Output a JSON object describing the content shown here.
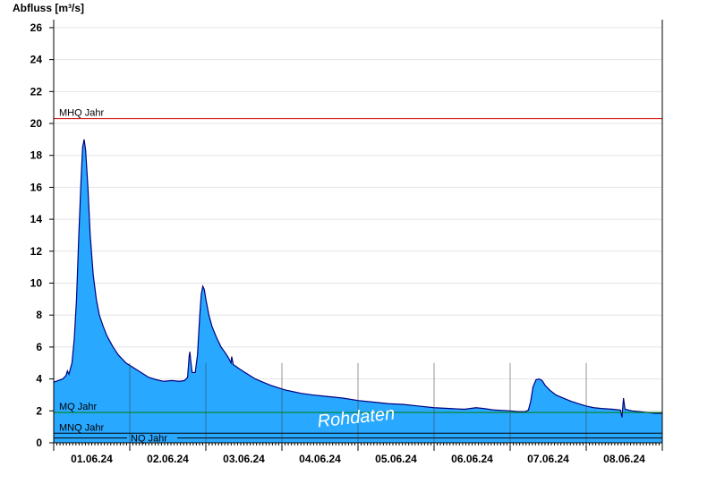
{
  "chart_data": {
    "type": "area",
    "title": "",
    "ylabel": "Abfluss [m³/s]",
    "xlabel": "",
    "ylim": [
      0,
      26.5
    ],
    "x_range_days": [
      0,
      8
    ],
    "yticks": [
      0,
      2,
      4,
      6,
      8,
      10,
      12,
      14,
      16,
      18,
      20,
      22,
      24,
      26
    ],
    "xticks": [
      {
        "label": "01.06.24",
        "day": 0.5
      },
      {
        "label": "02.06.24",
        "day": 1.5
      },
      {
        "label": "03.06.24",
        "day": 2.5
      },
      {
        "label": "04.06.24",
        "day": 3.5
      },
      {
        "label": "05.06.24",
        "day": 4.5
      },
      {
        "label": "06.06.24",
        "day": 5.5
      },
      {
        "label": "07.06.24",
        "day": 6.5
      },
      {
        "label": "08.06.24",
        "day": 7.5
      }
    ],
    "grid": true,
    "reference_lines": [
      {
        "label": "MHQ Jahr",
        "value": 20.3,
        "color": "#d00000"
      },
      {
        "label": "MQ Jahr",
        "value": 1.9,
        "color": "#008000"
      },
      {
        "label": "MNQ Jahr",
        "value": 0.6,
        "color": "#000000"
      },
      {
        "label": "NQ Jahr",
        "value": 0.3,
        "color": "#000000"
      }
    ],
    "watermark": "Rohdaten",
    "series": [
      {
        "fill_color": "#29a8ff",
        "line_color": "#000080",
        "points": [
          [
            0.0,
            3.8
          ],
          [
            0.06,
            3.9
          ],
          [
            0.12,
            4.0
          ],
          [
            0.16,
            4.2
          ],
          [
            0.18,
            4.5
          ],
          [
            0.2,
            4.3
          ],
          [
            0.24,
            5.0
          ],
          [
            0.27,
            6.5
          ],
          [
            0.3,
            9.0
          ],
          [
            0.33,
            13.0
          ],
          [
            0.36,
            16.5
          ],
          [
            0.38,
            18.5
          ],
          [
            0.4,
            19.0
          ],
          [
            0.42,
            18.3
          ],
          [
            0.45,
            16.0
          ],
          [
            0.48,
            13.0
          ],
          [
            0.52,
            10.5
          ],
          [
            0.56,
            9.0
          ],
          [
            0.6,
            8.0
          ],
          [
            0.65,
            7.3
          ],
          [
            0.7,
            6.7
          ],
          [
            0.78,
            6.0
          ],
          [
            0.85,
            5.5
          ],
          [
            0.95,
            5.0
          ],
          [
            1.05,
            4.7
          ],
          [
            1.15,
            4.4
          ],
          [
            1.25,
            4.1
          ],
          [
            1.35,
            3.95
          ],
          [
            1.45,
            3.85
          ],
          [
            1.55,
            3.9
          ],
          [
            1.65,
            3.85
          ],
          [
            1.72,
            3.9
          ],
          [
            1.76,
            4.1
          ],
          [
            1.78,
            5.4
          ],
          [
            1.79,
            5.7
          ],
          [
            1.8,
            5.2
          ],
          [
            1.82,
            4.4
          ],
          [
            1.86,
            4.4
          ],
          [
            1.89,
            5.5
          ],
          [
            1.92,
            8.0
          ],
          [
            1.94,
            9.3
          ],
          [
            1.96,
            9.8
          ],
          [
            1.98,
            9.6
          ],
          [
            2.0,
            9.0
          ],
          [
            2.04,
            8.0
          ],
          [
            2.08,
            7.3
          ],
          [
            2.14,
            6.6
          ],
          [
            2.2,
            6.0
          ],
          [
            2.26,
            5.6
          ],
          [
            2.3,
            5.3
          ],
          [
            2.33,
            5.0
          ],
          [
            2.34,
            5.4
          ],
          [
            2.36,
            4.9
          ],
          [
            2.45,
            4.6
          ],
          [
            2.55,
            4.3
          ],
          [
            2.65,
            4.0
          ],
          [
            2.75,
            3.8
          ],
          [
            2.85,
            3.6
          ],
          [
            2.95,
            3.45
          ],
          [
            3.05,
            3.3
          ],
          [
            3.15,
            3.2
          ],
          [
            3.25,
            3.1
          ],
          [
            3.4,
            3.0
          ],
          [
            3.6,
            2.9
          ],
          [
            3.8,
            2.8
          ],
          [
            4.0,
            2.65
          ],
          [
            4.2,
            2.55
          ],
          [
            4.4,
            2.45
          ],
          [
            4.6,
            2.4
          ],
          [
            4.8,
            2.3
          ],
          [
            5.0,
            2.2
          ],
          [
            5.2,
            2.15
          ],
          [
            5.4,
            2.1
          ],
          [
            5.55,
            2.2
          ],
          [
            5.65,
            2.15
          ],
          [
            5.8,
            2.05
          ],
          [
            6.0,
            2.0
          ],
          [
            6.1,
            1.95
          ],
          [
            6.2,
            1.95
          ],
          [
            6.24,
            2.05
          ],
          [
            6.27,
            2.6
          ],
          [
            6.3,
            3.5
          ],
          [
            6.34,
            3.95
          ],
          [
            6.38,
            4.0
          ],
          [
            6.42,
            3.9
          ],
          [
            6.46,
            3.6
          ],
          [
            6.52,
            3.3
          ],
          [
            6.6,
            3.0
          ],
          [
            6.7,
            2.8
          ],
          [
            6.8,
            2.6
          ],
          [
            6.9,
            2.45
          ],
          [
            7.0,
            2.3
          ],
          [
            7.1,
            2.2
          ],
          [
            7.2,
            2.15
          ],
          [
            7.35,
            2.1
          ],
          [
            7.45,
            2.05
          ],
          [
            7.47,
            1.6
          ],
          [
            7.49,
            2.8
          ],
          [
            7.51,
            2.1
          ],
          [
            7.6,
            2.0
          ],
          [
            7.7,
            1.95
          ],
          [
            7.8,
            1.9
          ],
          [
            7.9,
            1.85
          ],
          [
            8.0,
            1.85
          ]
        ]
      }
    ]
  }
}
